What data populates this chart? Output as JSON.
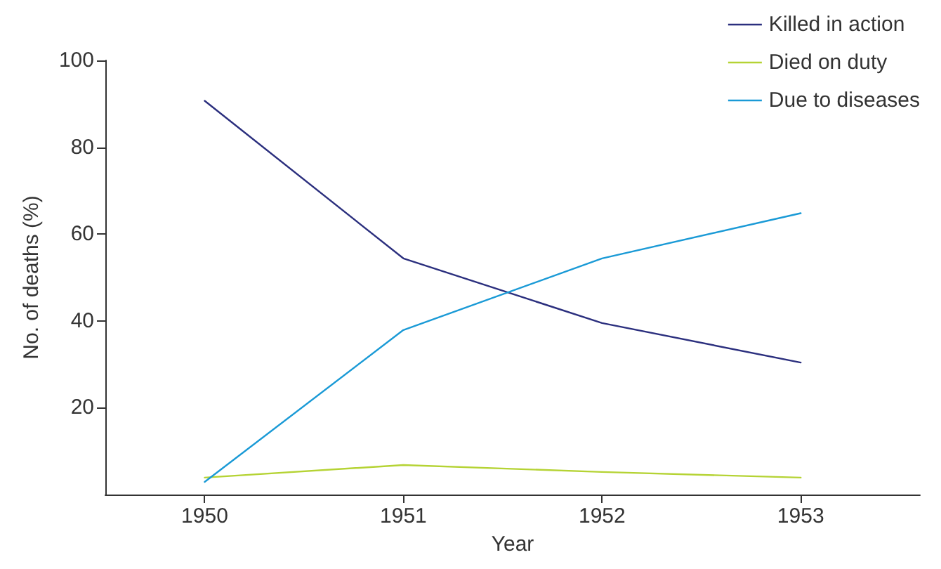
{
  "chart_data": {
    "type": "line",
    "xlabel": "Year",
    "ylabel": "No. of deaths (%)",
    "x": [
      1950,
      1951,
      1952,
      1953
    ],
    "series": [
      {
        "name": "Killed in action",
        "color": "#2b2f7e",
        "values": [
          90.7,
          54.4,
          39.5,
          30.4
        ]
      },
      {
        "name": "Died on duty",
        "color": "#b5d334",
        "values": [
          3.9,
          6.8,
          5.2,
          3.9
        ]
      },
      {
        "name": "Due to diseases",
        "color": "#1a9ad6",
        "values": [
          2.9,
          37.9,
          54.4,
          64.8
        ]
      }
    ],
    "xlim": [
      1949.5,
      1953.6
    ],
    "xticks": [
      1950,
      1951,
      1952,
      1953
    ],
    "ylim": [
      0,
      100
    ],
    "yticks": [
      20,
      40,
      60,
      80,
      100
    ],
    "grid": false,
    "legend": "top right",
    "marker": "none",
    "line_style": "solid"
  }
}
